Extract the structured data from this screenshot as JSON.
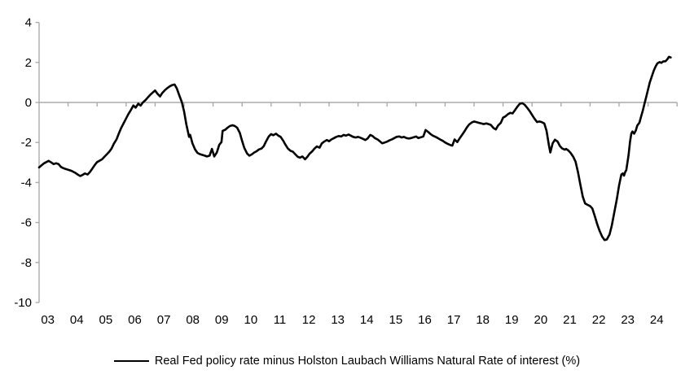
{
  "chart": {
    "legend_label": "Real Fed policy rate minus Holston Laubach Williams Natural Rate of interest (%)",
    "line_color": "#000000",
    "axis_color": "#aaaaaa",
    "label_color": "#000000",
    "y_tick_labels": [
      "4",
      "2",
      "0",
      "-2",
      "-4",
      "-6",
      "-8",
      "-10"
    ],
    "y_tick_values": [
      4,
      2,
      0,
      -2,
      -4,
      -6,
      -8,
      -10
    ],
    "x_labels": [
      "03",
      "04",
      "05",
      "06",
      "07",
      "08",
      "09",
      "10",
      "11",
      "12",
      "13",
      "14",
      "15",
      "16",
      "17",
      "18",
      "19",
      "20",
      "21",
      "22",
      "23",
      "24"
    ]
  },
  "chart_data": {
    "type": "line",
    "title": "",
    "xlabel": "",
    "ylabel": "",
    "ylim": [
      -10,
      4
    ],
    "xlim": [
      2003,
      2025
    ],
    "grid": false,
    "legend_position": "bottom",
    "zero_axis_line": true,
    "series": [
      {
        "name": "Real Fed policy rate minus Holston Laubach Williams Natural Rate of interest (%)",
        "points": [
          [
            2003.0,
            -3.25
          ],
          [
            2003.08,
            -3.15
          ],
          [
            2003.17,
            -3.04
          ],
          [
            2003.25,
            -2.98
          ],
          [
            2003.33,
            -2.92
          ],
          [
            2003.42,
            -3.0
          ],
          [
            2003.5,
            -3.08
          ],
          [
            2003.58,
            -3.04
          ],
          [
            2003.67,
            -3.08
          ],
          [
            2003.75,
            -3.22
          ],
          [
            2003.83,
            -3.28
          ],
          [
            2003.92,
            -3.33
          ],
          [
            2004.0,
            -3.36
          ],
          [
            2004.08,
            -3.4
          ],
          [
            2004.17,
            -3.46
          ],
          [
            2004.25,
            -3.52
          ],
          [
            2004.33,
            -3.6
          ],
          [
            2004.42,
            -3.68
          ],
          [
            2004.5,
            -3.62
          ],
          [
            2004.58,
            -3.55
          ],
          [
            2004.67,
            -3.6
          ],
          [
            2004.75,
            -3.48
          ],
          [
            2004.83,
            -3.32
          ],
          [
            2004.92,
            -3.12
          ],
          [
            2005.0,
            -2.98
          ],
          [
            2005.08,
            -2.92
          ],
          [
            2005.17,
            -2.84
          ],
          [
            2005.25,
            -2.72
          ],
          [
            2005.33,
            -2.6
          ],
          [
            2005.42,
            -2.46
          ],
          [
            2005.5,
            -2.3
          ],
          [
            2005.58,
            -2.06
          ],
          [
            2005.67,
            -1.84
          ],
          [
            2005.75,
            -1.55
          ],
          [
            2005.83,
            -1.28
          ],
          [
            2005.92,
            -1.02
          ],
          [
            2006.0,
            -0.8
          ],
          [
            2006.08,
            -0.58
          ],
          [
            2006.17,
            -0.36
          ],
          [
            2006.25,
            -0.15
          ],
          [
            2006.33,
            -0.26
          ],
          [
            2006.42,
            -0.06
          ],
          [
            2006.5,
            -0.16
          ],
          [
            2006.58,
            0.0
          ],
          [
            2006.67,
            0.12
          ],
          [
            2006.75,
            0.25
          ],
          [
            2006.83,
            0.38
          ],
          [
            2006.92,
            0.5
          ],
          [
            2007.0,
            0.6
          ],
          [
            2007.08,
            0.44
          ],
          [
            2007.17,
            0.3
          ],
          [
            2007.25,
            0.48
          ],
          [
            2007.33,
            0.6
          ],
          [
            2007.42,
            0.72
          ],
          [
            2007.5,
            0.8
          ],
          [
            2007.58,
            0.86
          ],
          [
            2007.67,
            0.9
          ],
          [
            2007.75,
            0.7
          ],
          [
            2007.83,
            0.38
          ],
          [
            2007.92,
            0.02
          ],
          [
            2008.0,
            -0.45
          ],
          [
            2008.08,
            -1.1
          ],
          [
            2008.17,
            -1.72
          ],
          [
            2008.21,
            -1.62
          ],
          [
            2008.29,
            -2.05
          ],
          [
            2008.38,
            -2.35
          ],
          [
            2008.46,
            -2.52
          ],
          [
            2008.54,
            -2.58
          ],
          [
            2008.63,
            -2.62
          ],
          [
            2008.71,
            -2.66
          ],
          [
            2008.79,
            -2.7
          ],
          [
            2008.88,
            -2.66
          ],
          [
            2008.96,
            -2.32
          ],
          [
            2009.04,
            -2.7
          ],
          [
            2009.13,
            -2.5
          ],
          [
            2009.21,
            -2.12
          ],
          [
            2009.29,
            -1.98
          ],
          [
            2009.33,
            -1.42
          ],
          [
            2009.42,
            -1.36
          ],
          [
            2009.5,
            -1.26
          ],
          [
            2009.58,
            -1.18
          ],
          [
            2009.67,
            -1.14
          ],
          [
            2009.75,
            -1.18
          ],
          [
            2009.83,
            -1.26
          ],
          [
            2009.92,
            -1.52
          ],
          [
            2010.0,
            -1.92
          ],
          [
            2010.08,
            -2.28
          ],
          [
            2010.17,
            -2.55
          ],
          [
            2010.25,
            -2.66
          ],
          [
            2010.33,
            -2.6
          ],
          [
            2010.42,
            -2.5
          ],
          [
            2010.5,
            -2.44
          ],
          [
            2010.58,
            -2.35
          ],
          [
            2010.67,
            -2.3
          ],
          [
            2010.75,
            -2.18
          ],
          [
            2010.83,
            -1.94
          ],
          [
            2010.92,
            -1.7
          ],
          [
            2011.0,
            -1.58
          ],
          [
            2011.08,
            -1.64
          ],
          [
            2011.17,
            -1.56
          ],
          [
            2011.25,
            -1.66
          ],
          [
            2011.33,
            -1.72
          ],
          [
            2011.42,
            -1.92
          ],
          [
            2011.5,
            -2.12
          ],
          [
            2011.58,
            -2.3
          ],
          [
            2011.67,
            -2.42
          ],
          [
            2011.75,
            -2.46
          ],
          [
            2011.83,
            -2.58
          ],
          [
            2011.92,
            -2.72
          ],
          [
            2012.0,
            -2.76
          ],
          [
            2012.08,
            -2.7
          ],
          [
            2012.17,
            -2.84
          ],
          [
            2012.25,
            -2.72
          ],
          [
            2012.33,
            -2.56
          ],
          [
            2012.42,
            -2.44
          ],
          [
            2012.5,
            -2.3
          ],
          [
            2012.58,
            -2.2
          ],
          [
            2012.67,
            -2.26
          ],
          [
            2012.75,
            -2.05
          ],
          [
            2012.83,
            -1.96
          ],
          [
            2012.92,
            -1.88
          ],
          [
            2013.0,
            -1.94
          ],
          [
            2013.08,
            -1.85
          ],
          [
            2013.17,
            -1.78
          ],
          [
            2013.25,
            -1.72
          ],
          [
            2013.33,
            -1.68
          ],
          [
            2013.42,
            -1.7
          ],
          [
            2013.5,
            -1.62
          ],
          [
            2013.58,
            -1.66
          ],
          [
            2013.67,
            -1.6
          ],
          [
            2013.75,
            -1.66
          ],
          [
            2013.83,
            -1.72
          ],
          [
            2013.92,
            -1.75
          ],
          [
            2014.0,
            -1.72
          ],
          [
            2014.08,
            -1.76
          ],
          [
            2014.17,
            -1.82
          ],
          [
            2014.25,
            -1.88
          ],
          [
            2014.33,
            -1.8
          ],
          [
            2014.42,
            -1.62
          ],
          [
            2014.5,
            -1.68
          ],
          [
            2014.58,
            -1.78
          ],
          [
            2014.67,
            -1.85
          ],
          [
            2014.75,
            -1.94
          ],
          [
            2014.83,
            -2.04
          ],
          [
            2014.92,
            -2.0
          ],
          [
            2015.0,
            -1.96
          ],
          [
            2015.08,
            -1.9
          ],
          [
            2015.17,
            -1.84
          ],
          [
            2015.25,
            -1.78
          ],
          [
            2015.33,
            -1.72
          ],
          [
            2015.42,
            -1.7
          ],
          [
            2015.5,
            -1.75
          ],
          [
            2015.58,
            -1.72
          ],
          [
            2015.67,
            -1.78
          ],
          [
            2015.75,
            -1.8
          ],
          [
            2015.83,
            -1.78
          ],
          [
            2015.92,
            -1.74
          ],
          [
            2016.0,
            -1.7
          ],
          [
            2016.08,
            -1.78
          ],
          [
            2016.17,
            -1.74
          ],
          [
            2016.25,
            -1.7
          ],
          [
            2016.33,
            -1.38
          ],
          [
            2016.42,
            -1.48
          ],
          [
            2016.5,
            -1.58
          ],
          [
            2016.58,
            -1.66
          ],
          [
            2016.67,
            -1.72
          ],
          [
            2016.75,
            -1.78
          ],
          [
            2016.83,
            -1.85
          ],
          [
            2016.92,
            -1.92
          ],
          [
            2017.0,
            -2.0
          ],
          [
            2017.08,
            -2.06
          ],
          [
            2017.17,
            -2.12
          ],
          [
            2017.25,
            -2.16
          ],
          [
            2017.33,
            -1.85
          ],
          [
            2017.42,
            -1.98
          ],
          [
            2017.5,
            -1.8
          ],
          [
            2017.58,
            -1.64
          ],
          [
            2017.67,
            -1.44
          ],
          [
            2017.75,
            -1.25
          ],
          [
            2017.83,
            -1.1
          ],
          [
            2017.92,
            -1.0
          ],
          [
            2018.0,
            -0.95
          ],
          [
            2018.08,
            -0.98
          ],
          [
            2018.17,
            -1.02
          ],
          [
            2018.25,
            -1.05
          ],
          [
            2018.33,
            -1.08
          ],
          [
            2018.42,
            -1.05
          ],
          [
            2018.5,
            -1.08
          ],
          [
            2018.58,
            -1.12
          ],
          [
            2018.67,
            -1.28
          ],
          [
            2018.75,
            -1.35
          ],
          [
            2018.83,
            -1.15
          ],
          [
            2018.92,
            -1.02
          ],
          [
            2019.0,
            -0.76
          ],
          [
            2019.08,
            -0.7
          ],
          [
            2019.17,
            -0.58
          ],
          [
            2019.25,
            -0.52
          ],
          [
            2019.33,
            -0.55
          ],
          [
            2019.42,
            -0.36
          ],
          [
            2019.5,
            -0.2
          ],
          [
            2019.58,
            -0.06
          ],
          [
            2019.67,
            -0.04
          ],
          [
            2019.75,
            -0.12
          ],
          [
            2019.83,
            -0.26
          ],
          [
            2019.92,
            -0.44
          ],
          [
            2020.0,
            -0.62
          ],
          [
            2020.08,
            -0.8
          ],
          [
            2020.17,
            -0.98
          ],
          [
            2020.25,
            -0.95
          ],
          [
            2020.33,
            -0.98
          ],
          [
            2020.42,
            -1.05
          ],
          [
            2020.5,
            -1.42
          ],
          [
            2020.58,
            -2.12
          ],
          [
            2020.63,
            -2.5
          ],
          [
            2020.71,
            -2.04
          ],
          [
            2020.79,
            -1.86
          ],
          [
            2020.88,
            -1.95
          ],
          [
            2020.96,
            -2.18
          ],
          [
            2021.04,
            -2.3
          ],
          [
            2021.13,
            -2.36
          ],
          [
            2021.17,
            -2.32
          ],
          [
            2021.25,
            -2.4
          ],
          [
            2021.33,
            -2.52
          ],
          [
            2021.42,
            -2.72
          ],
          [
            2021.5,
            -2.96
          ],
          [
            2021.58,
            -3.45
          ],
          [
            2021.67,
            -4.15
          ],
          [
            2021.75,
            -4.72
          ],
          [
            2021.83,
            -5.05
          ],
          [
            2021.92,
            -5.12
          ],
          [
            2022.0,
            -5.18
          ],
          [
            2022.08,
            -5.3
          ],
          [
            2022.17,
            -5.72
          ],
          [
            2022.25,
            -6.1
          ],
          [
            2022.33,
            -6.42
          ],
          [
            2022.42,
            -6.72
          ],
          [
            2022.5,
            -6.88
          ],
          [
            2022.58,
            -6.85
          ],
          [
            2022.67,
            -6.6
          ],
          [
            2022.75,
            -6.15
          ],
          [
            2022.83,
            -5.55
          ],
          [
            2022.92,
            -4.85
          ],
          [
            2023.0,
            -4.15
          ],
          [
            2023.08,
            -3.6
          ],
          [
            2023.13,
            -3.55
          ],
          [
            2023.17,
            -3.66
          ],
          [
            2023.21,
            -3.48
          ],
          [
            2023.25,
            -3.38
          ],
          [
            2023.33,
            -2.62
          ],
          [
            2023.38,
            -1.95
          ],
          [
            2023.42,
            -1.56
          ],
          [
            2023.46,
            -1.45
          ],
          [
            2023.52,
            -1.56
          ],
          [
            2023.58,
            -1.4
          ],
          [
            2023.63,
            -1.15
          ],
          [
            2023.7,
            -1.02
          ],
          [
            2023.76,
            -0.7
          ],
          [
            2023.82,
            -0.4
          ],
          [
            2023.88,
            -0.05
          ],
          [
            2023.94,
            0.3
          ],
          [
            2024.0,
            0.65
          ],
          [
            2024.06,
            1.0
          ],
          [
            2024.13,
            1.3
          ],
          [
            2024.2,
            1.6
          ],
          [
            2024.26,
            1.8
          ],
          [
            2024.32,
            1.95
          ],
          [
            2024.4,
            2.02
          ],
          [
            2024.46,
            1.98
          ],
          [
            2024.52,
            2.05
          ],
          [
            2024.6,
            2.06
          ],
          [
            2024.66,
            2.15
          ],
          [
            2024.72,
            2.28
          ],
          [
            2024.78,
            2.25
          ]
        ]
      }
    ]
  }
}
